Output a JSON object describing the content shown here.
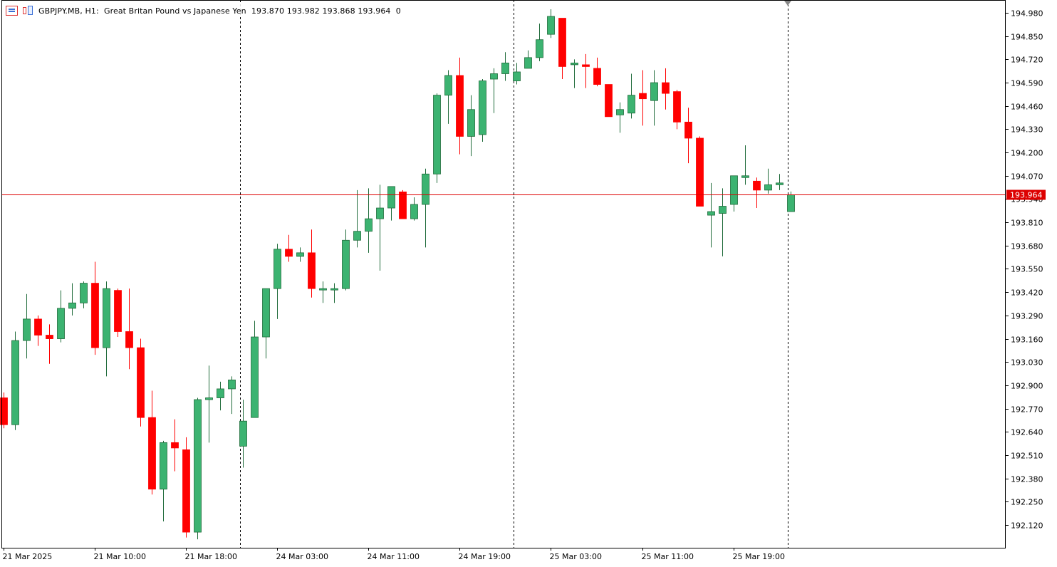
{
  "header": {
    "symbol": "GBPJPY.MB",
    "timeframe": "H1",
    "description": "Great Britan Pound vs Japanese Yen",
    "open": "193.870",
    "high": "193.982",
    "low": "193.868",
    "close": "193.964",
    "volume": "0"
  },
  "colors": {
    "bull": "#3cb371",
    "bear": "#ff0000",
    "grid": "#000000",
    "price_line": "#dd0000",
    "price_badge_text": "#ffffff"
  },
  "chart_data": {
    "type": "candlestick",
    "y_ticks": [
      "194.980",
      "194.850",
      "194.720",
      "194.590",
      "194.460",
      "194.330",
      "194.200",
      "194.070",
      "193.940",
      "193.810",
      "193.680",
      "193.550",
      "193.420",
      "193.290",
      "193.160",
      "193.030",
      "192.900",
      "192.770",
      "192.640",
      "192.510",
      "192.380",
      "192.250",
      "192.120"
    ],
    "ylim": [
      192.01,
      195.01
    ],
    "x_labels": [
      {
        "index": 0,
        "label": "21 Mar 2025"
      },
      {
        "index": 8,
        "label": "21 Mar 10:00"
      },
      {
        "index": 16,
        "label": "21 Mar 18:00"
      },
      {
        "index": 24,
        "label": "24 Mar 03:00"
      },
      {
        "index": 32,
        "label": "24 Mar 11:00"
      },
      {
        "index": 40,
        "label": "24 Mar 19:00"
      },
      {
        "index": 48,
        "label": "25 Mar 03:00"
      },
      {
        "index": 56,
        "label": "25 Mar 11:00"
      },
      {
        "index": 64,
        "label": "25 Mar 19:00"
      }
    ],
    "period_separators": [
      20.75,
      44.75,
      68.75
    ],
    "current_price": "193.964",
    "candles": [
      {
        "o": 192.83,
        "h": 192.86,
        "l": 192.66,
        "c": 192.68
      },
      {
        "o": 192.68,
        "h": 193.2,
        "l": 192.65,
        "c": 193.15
      },
      {
        "o": 193.15,
        "h": 193.41,
        "l": 193.05,
        "c": 193.27
      },
      {
        "o": 193.27,
        "h": 193.29,
        "l": 193.12,
        "c": 193.18
      },
      {
        "o": 193.18,
        "h": 193.24,
        "l": 193.02,
        "c": 193.16
      },
      {
        "o": 193.16,
        "h": 193.43,
        "l": 193.14,
        "c": 193.33
      },
      {
        "o": 193.33,
        "h": 193.47,
        "l": 193.29,
        "c": 193.36
      },
      {
        "o": 193.36,
        "h": 193.48,
        "l": 193.33,
        "c": 193.47
      },
      {
        "o": 193.47,
        "h": 193.59,
        "l": 193.07,
        "c": 193.11
      },
      {
        "o": 193.11,
        "h": 193.48,
        "l": 192.95,
        "c": 193.44
      },
      {
        "o": 193.43,
        "h": 193.44,
        "l": 193.17,
        "c": 193.2
      },
      {
        "o": 193.2,
        "h": 193.44,
        "l": 192.99,
        "c": 193.11
      },
      {
        "o": 193.11,
        "h": 193.16,
        "l": 192.67,
        "c": 192.72
      },
      {
        "o": 192.72,
        "h": 192.87,
        "l": 192.29,
        "c": 192.32
      },
      {
        "o": 192.32,
        "h": 192.59,
        "l": 192.14,
        "c": 192.58
      },
      {
        "o": 192.58,
        "h": 192.71,
        "l": 192.42,
        "c": 192.55
      },
      {
        "o": 192.54,
        "h": 192.61,
        "l": 192.05,
        "c": 192.08
      },
      {
        "o": 192.08,
        "h": 192.83,
        "l": 192.04,
        "c": 192.82
      },
      {
        "o": 192.82,
        "h": 193.01,
        "l": 192.58,
        "c": 192.83
      },
      {
        "o": 192.83,
        "h": 192.92,
        "l": 192.76,
        "c": 192.88
      },
      {
        "o": 192.88,
        "h": 192.95,
        "l": 192.74,
        "c": 192.93
      },
      {
        "o": 192.56,
        "h": 192.82,
        "l": 192.44,
        "c": 192.7
      },
      {
        "o": 192.72,
        "h": 193.26,
        "l": 192.72,
        "c": 193.17
      },
      {
        "o": 193.17,
        "h": 193.44,
        "l": 193.05,
        "c": 193.44
      },
      {
        "o": 193.44,
        "h": 193.69,
        "l": 193.27,
        "c": 193.66
      },
      {
        "o": 193.66,
        "h": 193.74,
        "l": 193.59,
        "c": 193.62
      },
      {
        "o": 193.62,
        "h": 193.67,
        "l": 193.59,
        "c": 193.64
      },
      {
        "o": 193.64,
        "h": 193.77,
        "l": 193.39,
        "c": 193.44
      },
      {
        "o": 193.44,
        "h": 193.48,
        "l": 193.36,
        "c": 193.44
      },
      {
        "o": 193.44,
        "h": 193.47,
        "l": 193.36,
        "c": 193.44
      },
      {
        "o": 193.44,
        "h": 193.77,
        "l": 193.43,
        "c": 193.71
      },
      {
        "o": 193.71,
        "h": 193.99,
        "l": 193.67,
        "c": 193.76
      },
      {
        "o": 193.76,
        "h": 194.0,
        "l": 193.64,
        "c": 193.83
      },
      {
        "o": 193.83,
        "h": 194.02,
        "l": 193.54,
        "c": 193.89
      },
      {
        "o": 193.89,
        "h": 194.01,
        "l": 193.82,
        "c": 194.01
      },
      {
        "o": 193.98,
        "h": 193.99,
        "l": 193.84,
        "c": 193.83
      },
      {
        "o": 193.83,
        "h": 193.95,
        "l": 193.82,
        "c": 193.91
      },
      {
        "o": 193.91,
        "h": 194.11,
        "l": 193.67,
        "c": 194.08
      },
      {
        "o": 194.08,
        "h": 194.53,
        "l": 194.03,
        "c": 194.52
      },
      {
        "o": 194.52,
        "h": 194.66,
        "l": 194.36,
        "c": 194.63
      },
      {
        "o": 194.63,
        "h": 194.73,
        "l": 194.19,
        "c": 194.29
      },
      {
        "o": 194.29,
        "h": 194.52,
        "l": 194.18,
        "c": 194.44
      },
      {
        "o": 194.3,
        "h": 194.61,
        "l": 194.26,
        "c": 194.6
      },
      {
        "o": 194.61,
        "h": 194.67,
        "l": 194.42,
        "c": 194.64
      },
      {
        "o": 194.64,
        "h": 194.76,
        "l": 194.6,
        "c": 194.7
      },
      {
        "o": 194.6,
        "h": 194.7,
        "l": 194.58,
        "c": 194.65
      },
      {
        "o": 194.67,
        "h": 194.77,
        "l": 194.68,
        "c": 194.73
      },
      {
        "o": 194.73,
        "h": 194.92,
        "l": 194.71,
        "c": 194.83
      },
      {
        "o": 194.86,
        "h": 195.0,
        "l": 194.84,
        "c": 194.96
      },
      {
        "o": 194.95,
        "h": 194.95,
        "l": 194.61,
        "c": 194.68
      },
      {
        "o": 194.69,
        "h": 194.72,
        "l": 194.56,
        "c": 194.7
      },
      {
        "o": 194.69,
        "h": 194.75,
        "l": 194.56,
        "c": 194.68
      },
      {
        "o": 194.67,
        "h": 194.73,
        "l": 194.57,
        "c": 194.58
      },
      {
        "o": 194.58,
        "h": 194.58,
        "l": 194.4,
        "c": 194.4
      },
      {
        "o": 194.41,
        "h": 194.48,
        "l": 194.31,
        "c": 194.44
      },
      {
        "o": 194.42,
        "h": 194.64,
        "l": 194.39,
        "c": 194.52
      },
      {
        "o": 194.53,
        "h": 194.66,
        "l": 194.35,
        "c": 194.5
      },
      {
        "o": 194.49,
        "h": 194.66,
        "l": 194.35,
        "c": 194.59
      },
      {
        "o": 194.59,
        "h": 194.67,
        "l": 194.44,
        "c": 194.53
      },
      {
        "o": 194.54,
        "h": 194.55,
        "l": 194.33,
        "c": 194.37
      },
      {
        "o": 194.37,
        "h": 194.45,
        "l": 194.14,
        "c": 194.28
      },
      {
        "o": 194.28,
        "h": 194.29,
        "l": 193.9,
        "c": 193.9
      },
      {
        "o": 193.85,
        "h": 194.03,
        "l": 193.67,
        "c": 193.87
      },
      {
        "o": 193.86,
        "h": 194.0,
        "l": 193.62,
        "c": 193.9
      },
      {
        "o": 193.91,
        "h": 194.07,
        "l": 193.87,
        "c": 194.07
      },
      {
        "o": 194.06,
        "h": 194.24,
        "l": 194.02,
        "c": 194.07
      },
      {
        "o": 194.04,
        "h": 194.06,
        "l": 193.89,
        "c": 193.99
      },
      {
        "o": 193.99,
        "h": 194.11,
        "l": 193.97,
        "c": 194.02
      },
      {
        "o": 194.02,
        "h": 194.08,
        "l": 193.99,
        "c": 194.03
      },
      {
        "o": 193.87,
        "h": 193.982,
        "l": 193.868,
        "c": 193.964
      }
    ]
  }
}
